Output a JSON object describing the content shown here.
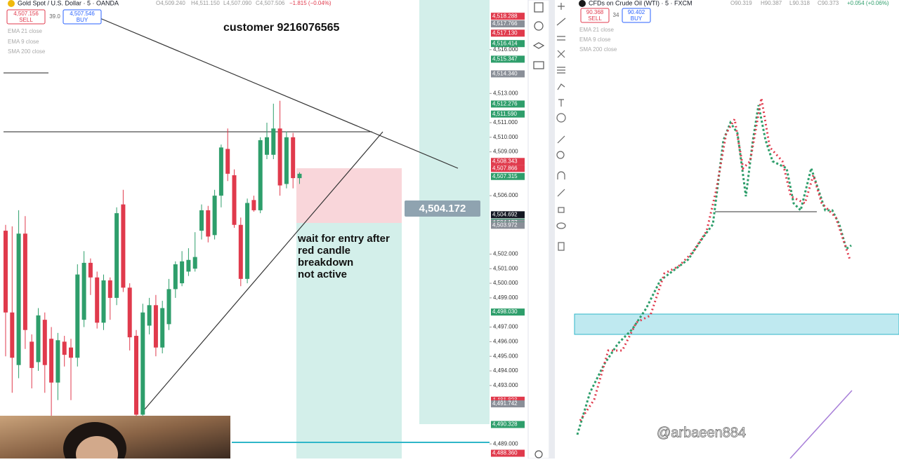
{
  "left_chart": {
    "header": {
      "symbol": "Gold Spot / U.S. Dollar · 5 · OANDA",
      "open": "O4,509.240",
      "high": "H4,511.150",
      "low": "L4,507.090",
      "close": "C4,507.506",
      "change": "−1.815 (−0.04%)"
    },
    "sell": {
      "price": "4,507.156",
      "label": "SELL"
    },
    "spread": "39.0",
    "buy": {
      "price": "4,507.546",
      "label": "BUY"
    },
    "indicators": [
      "EMA 21 close",
      "EMA 9 close",
      "SMA 200 close"
    ],
    "note_top": "customer 9216076565",
    "measure": {
      "value": 4504.172,
      "label": "4,504.172"
    },
    "note": [
      "wait for entry after",
      "red candle",
      "breakdown",
      "not active"
    ],
    "ylim": [
      4488.0,
      4519.4
    ],
    "yticks": [
      {
        "value": 4516,
        "label": "4,516.000"
      },
      {
        "value": 4513,
        "label": "4,513.000"
      },
      {
        "value": 4511,
        "label": "4,511.000"
      },
      {
        "value": 4510,
        "label": "4,510.000"
      },
      {
        "value": 4509,
        "label": "4,509.000"
      },
      {
        "value": 4506,
        "label": "4,506.000"
      },
      {
        "value": 4502,
        "label": "4,502.000"
      },
      {
        "value": 4501,
        "label": "4,501.000"
      },
      {
        "value": 4500,
        "label": "4,500.000"
      },
      {
        "value": 4499,
        "label": "4,499.000"
      },
      {
        "value": 4497,
        "label": "4,497.000"
      },
      {
        "value": 4496,
        "label": "4,496.000"
      },
      {
        "value": 4495,
        "label": "4,495.000"
      },
      {
        "value": 4494,
        "label": "4,494.000"
      },
      {
        "value": 4493,
        "label": "4,493.000"
      },
      {
        "value": 4489,
        "label": "4,489.000"
      }
    ],
    "price_tags": [
      {
        "value": 4518.288,
        "label": "4,518.288",
        "color": "#e03a4c"
      },
      {
        "value": 4517.766,
        "label": "4,517.766",
        "color": "#8a8f98"
      },
      {
        "value": 4517.13,
        "label": "4,517.130",
        "color": "#e03a4c"
      },
      {
        "value": 4516.414,
        "label": "4,516.414",
        "color": "#2e9e6b"
      },
      {
        "value": 4515.347,
        "label": "4,515.347",
        "color": "#2e9e6b"
      },
      {
        "value": 4514.34,
        "label": "4,514.340",
        "color": "#8a8f98"
      },
      {
        "value": 4512.276,
        "label": "4,512.276",
        "color": "#2e9e6b"
      },
      {
        "value": 4511.59,
        "label": "4,511.590",
        "color": "#2e9e6b"
      },
      {
        "value": 4508.343,
        "label": "4,508.343",
        "color": "#e03a4c"
      },
      {
        "value": 4507.866,
        "label": "4,507.866",
        "color": "#e03a4c"
      },
      {
        "value": 4507.315,
        "label": "4,507.315",
        "color": "#2e9e6b"
      },
      {
        "value": 4504.692,
        "label": "4,504.692",
        "color": "#131722"
      },
      {
        "value": 4504.176,
        "label": "4,504.176",
        "color": "#2e9e6b"
      },
      {
        "value": 4504.127,
        "label": "4,504.127",
        "color": "#8a8f98"
      },
      {
        "value": 4503.992,
        "label": "4,503.992",
        "color": "#2e9e6b"
      },
      {
        "value": 4503.972,
        "label": "4,503.972",
        "color": "#8a8f98"
      },
      {
        "value": 4498.03,
        "label": "4,498.030",
        "color": "#2e9e6b"
      },
      {
        "value": 4491.993,
        "label": "4,491.993",
        "color": "#e03a4c"
      },
      {
        "value": 4491.84,
        "label": "4,491.840",
        "color": "#e03a4c"
      },
      {
        "value": 4491.742,
        "label": "4,491.742",
        "color": "#8a8f98"
      },
      {
        "value": 4490.328,
        "label": "4,490.328",
        "color": "#2e9e6b"
      },
      {
        "value": 4488.36,
        "label": "4,488.360",
        "color": "#e03a4c"
      }
    ],
    "candles": [
      [
        4503.6,
        4504.0,
        4495.0,
        4498.0
      ],
      [
        4498.0,
        4503.9,
        4492.5,
        4494.9
      ],
      [
        4494.4,
        4505.0,
        4493.5,
        4503.4
      ],
      [
        4503.4,
        4504.6,
        4495.5,
        4496.8
      ],
      [
        4496.0,
        4496.5,
        4492.8,
        4494.2
      ],
      [
        4494.6,
        4498.3,
        4494.0,
        4497.8
      ],
      [
        4497.5,
        4498.0,
        4492.5,
        4494.4
      ],
      [
        4496.2,
        4497.0,
        4490.3,
        4493.2
      ],
      [
        4493.2,
        4496.6,
        4492.0,
        4496.1
      ],
      [
        4496.0,
        4496.4,
        4494.3,
        4495.1
      ],
      [
        4495.6,
        4496.2,
        4492.0,
        4494.9
      ],
      [
        4494.9,
        4501.3,
        4494.3,
        4500.6
      ],
      [
        4497.5,
        4502.2,
        4497.0,
        4501.4
      ],
      [
        4501.4,
        4501.7,
        4499.2,
        4500.4
      ],
      [
        4500.4,
        4500.8,
        4496.9,
        4497.3
      ],
      [
        4497.3,
        4500.6,
        4496.8,
        4500.2
      ],
      [
        4500.2,
        4500.4,
        4497.5,
        4499.0
      ],
      [
        4499.0,
        4505.2,
        4498.5,
        4504.8
      ],
      [
        4505.4,
        4506.4,
        4499.4,
        4499.7
      ],
      [
        4499.7,
        4500.0,
        4495.4,
        4496.3
      ],
      [
        4496.4,
        4496.8,
        4490.5,
        4491.0
      ],
      [
        4491.0,
        4498.6,
        4490.5,
        4498.0
      ],
      [
        4497.1,
        4499.0,
        4496.5,
        4498.5
      ],
      [
        4498.5,
        4499.2,
        4495.0,
        4495.6
      ],
      [
        4495.6,
        4498.8,
        4495.2,
        4498.3
      ],
      [
        4497.2,
        4500.3,
        4496.8,
        4499.6
      ],
      [
        4499.6,
        4501.5,
        4499.0,
        4501.3
      ],
      [
        4500.0,
        4502.2,
        4499.8,
        4501.5
      ],
      [
        4500.8,
        4502.4,
        4500.5,
        4501.6
      ],
      [
        4501.0,
        4503.5,
        4500.8,
        4501.8
      ],
      [
        4503.6,
        4505.4,
        4503.0,
        4505.0
      ],
      [
        4505.0,
        4505.3,
        4502.8,
        4503.2
      ],
      [
        4503.3,
        4506.4,
        4503.0,
        4506.0
      ],
      [
        4506.0,
        4509.5,
        4505.2,
        4509.3
      ],
      [
        4509.2,
        4510.6,
        4507.0,
        4507.5
      ],
      [
        4507.4,
        4507.8,
        4503.8,
        4504.0
      ],
      [
        4504.0,
        4504.5,
        4499.8,
        4500.3
      ],
      [
        4500.3,
        4505.8,
        4500.0,
        4505.5
      ],
      [
        4505.7,
        4506.0,
        4504.9,
        4505.0
      ],
      [
        4505.0,
        4510.0,
        4504.8,
        4509.8
      ],
      [
        4508.8,
        4511.0,
        4508.5,
        4510.0
      ],
      [
        4508.8,
        4512.3,
        4508.5,
        4510.6
      ],
      [
        4510.6,
        4512.5,
        4506.0,
        4506.7
      ],
      [
        4506.8,
        4510.4,
        4506.5,
        4510.0
      ],
      [
        4510.0,
        4510.3,
        4506.5,
        4507.2
      ],
      [
        4507.2,
        4507.6,
        4506.8,
        4507.5
      ]
    ],
    "up_color": "#2e9e6b",
    "down_color": "#e03a4c"
  },
  "right_chart": {
    "header": {
      "symbol": "CFDs on Crude Oil (WTI) · 5 · FXCM",
      "open": "O90.319",
      "high": "H90.387",
      "low": "L90.318",
      "close": "C90.373",
      "change": "+0.054 (+0.06%)"
    },
    "sell": {
      "price": "90.368",
      "label": "SELL"
    },
    "spread": "34",
    "buy": {
      "price": "90.402",
      "label": "BUY"
    },
    "indicators": [
      "EMA 21 close",
      "EMA 9 close",
      "SMA 200 close"
    ]
  },
  "watermark": "@arbaeen884"
}
